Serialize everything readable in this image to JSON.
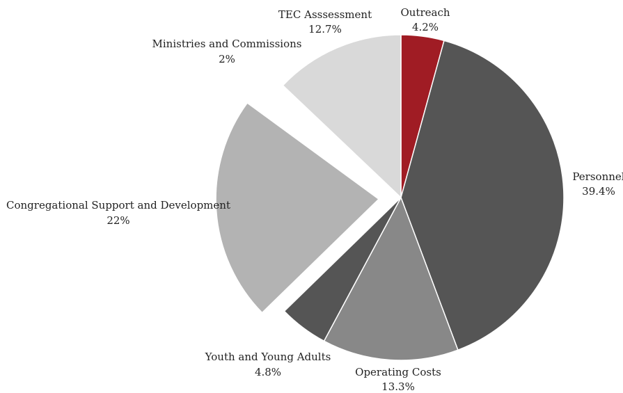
{
  "chart_data": {
    "type": "pie",
    "title": "",
    "start_angle_deg": 0,
    "direction": "clockwise",
    "slices": [
      {
        "label": "Outreach",
        "value": 4.2,
        "value_label": "4.2%",
        "color": "#a01c24",
        "exploded": false
      },
      {
        "label": "Personnel",
        "value": 39.4,
        "value_label": "39.4%",
        "color": "#555555",
        "exploded": false
      },
      {
        "label": "Operating Costs",
        "value": 13.3,
        "value_label": "13.3%",
        "color": "#888888",
        "exploded": false
      },
      {
        "label": "Youth and Young Adults",
        "value": 4.8,
        "value_label": "4.8%",
        "color": "#555555",
        "exploded": false
      },
      {
        "label": "Congregational Support and Development",
        "value": 22,
        "value_label": "22%",
        "color": "#b3b3b3",
        "exploded": true
      },
      {
        "label": "Ministries and Commissions",
        "value": 2,
        "value_label": "2%",
        "color": "#ffffff",
        "exploded": false
      },
      {
        "label": "TEC Asssessment",
        "value": 12.7,
        "value_label": "12.7%",
        "color": "#d9d9d9",
        "exploded": false
      }
    ],
    "legend": "none"
  }
}
